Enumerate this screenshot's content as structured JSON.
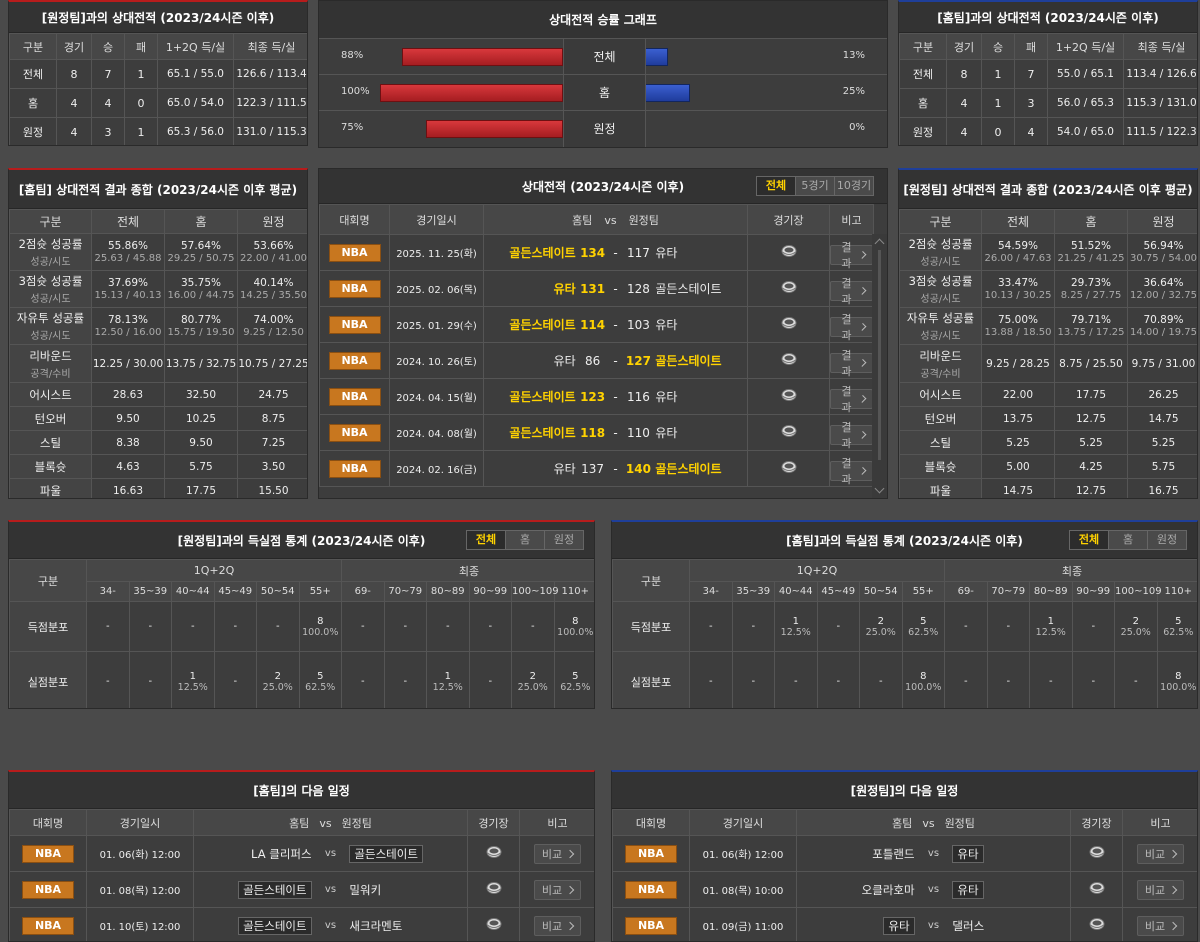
{
  "away_record": {
    "title": "[원정팀]과의 상대전적 (2023/24시즌 이후)",
    "columns": [
      "구분",
      "경기",
      "승",
      "패",
      "1+2Q 득/실",
      "최종 득/실"
    ],
    "rows": [
      [
        "전체",
        8,
        7,
        1,
        "65.1 / 55.0",
        "126.6 / 113.4"
      ],
      [
        "홈",
        4,
        4,
        0,
        "65.0 / 54.0",
        "122.3 / 111.5"
      ],
      [
        "원정",
        4,
        3,
        1,
        "65.3 / 56.0",
        "131.0 / 115.3"
      ]
    ]
  },
  "win_graph": {
    "title": "상대전적 승률 그래프",
    "xlim": [
      0,
      100
    ],
    "rows": [
      {
        "label": "전체",
        "home": 88,
        "home_label": "88%",
        "away": 13,
        "away_label": "13%"
      },
      {
        "label": "홈",
        "home": 100,
        "home_label": "100%",
        "away": 25,
        "away_label": "25%"
      },
      {
        "label": "원정",
        "home": 75,
        "home_label": "75%",
        "away": 0,
        "away_label": "0%"
      }
    ]
  },
  "home_record": {
    "title": "[홈팀]과의 상대전적 (2023/24시즌 이후)",
    "columns": [
      "구분",
      "경기",
      "승",
      "패",
      "1+2Q 득/실",
      "최종 득/실"
    ],
    "rows": [
      [
        "전체",
        8,
        1,
        7,
        "55.0 / 65.1",
        "113.4 / 126.6"
      ],
      [
        "홈",
        4,
        1,
        3,
        "56.0 / 65.3",
        "115.3 / 131.0"
      ],
      [
        "원정",
        4,
        0,
        4,
        "54.0 / 65.0",
        "111.5 / 122.3"
      ]
    ]
  },
  "home_summary": {
    "title": "[홈팀] 상대전적 결과 종합 (2023/24시즌 이후 평균)",
    "columns": [
      "구분",
      "전체",
      "홈",
      "원정"
    ],
    "rows": [
      {
        "label": "2점슛 성공률",
        "sub": "성공/시도",
        "cells": [
          [
            "55.86%",
            "25.63 / 45.88"
          ],
          [
            "57.64%",
            "29.25 / 50.75"
          ],
          [
            "53.66%",
            "22.00 / 41.00"
          ]
        ]
      },
      {
        "label": "3점슛 성공률",
        "sub": "성공/시도",
        "cells": [
          [
            "37.69%",
            "15.13 / 40.13"
          ],
          [
            "35.75%",
            "16.00 / 44.75"
          ],
          [
            "40.14%",
            "14.25 / 35.50"
          ]
        ]
      },
      {
        "label": "자유투 성공률",
        "sub": "성공/시도",
        "cells": [
          [
            "78.13%",
            "12.50 / 16.00"
          ],
          [
            "80.77%",
            "15.75 / 19.50"
          ],
          [
            "74.00%",
            "9.25 / 12.50"
          ]
        ]
      },
      {
        "label": "리바운드",
        "sub": "공격/수비",
        "cells": [
          [
            "12.25 / 30.00"
          ],
          [
            "13.75 / 32.75"
          ],
          [
            "10.75 / 27.25"
          ]
        ]
      },
      {
        "label": "어시스트",
        "cells": [
          [
            "28.63"
          ],
          [
            "32.50"
          ],
          [
            "24.75"
          ]
        ]
      },
      {
        "label": "턴오버",
        "cells": [
          [
            "9.50"
          ],
          [
            "10.25"
          ],
          [
            "8.75"
          ]
        ]
      },
      {
        "label": "스틸",
        "cells": [
          [
            "8.38"
          ],
          [
            "9.50"
          ],
          [
            "7.25"
          ]
        ]
      },
      {
        "label": "블록슛",
        "cells": [
          [
            "4.63"
          ],
          [
            "5.75"
          ],
          [
            "3.50"
          ]
        ]
      },
      {
        "label": "파울",
        "cells": [
          [
            "16.63"
          ],
          [
            "17.75"
          ],
          [
            "15.50"
          ]
        ]
      }
    ]
  },
  "away_summary": {
    "title": "[원정팀] 상대전적 결과 종합 (2023/24시즌 이후 평균)",
    "columns": [
      "구분",
      "전체",
      "홈",
      "원정"
    ],
    "rows": [
      {
        "label": "2점슛 성공률",
        "sub": "성공/시도",
        "cells": [
          [
            "54.59%",
            "26.00 / 47.63"
          ],
          [
            "51.52%",
            "21.25 / 41.25"
          ],
          [
            "56.94%",
            "30.75 / 54.00"
          ]
        ]
      },
      {
        "label": "3점슛 성공률",
        "sub": "성공/시도",
        "cells": [
          [
            "33.47%",
            "10.13 / 30.25"
          ],
          [
            "29.73%",
            "8.25 / 27.75"
          ],
          [
            "36.64%",
            "12.00 / 32.75"
          ]
        ]
      },
      {
        "label": "자유투 성공률",
        "sub": "성공/시도",
        "cells": [
          [
            "75.00%",
            "13.88 / 18.50"
          ],
          [
            "79.71%",
            "13.75 / 17.25"
          ],
          [
            "70.89%",
            "14.00 / 19.75"
          ]
        ]
      },
      {
        "label": "리바운드",
        "sub": "공격/수비",
        "cells": [
          [
            "9.25 / 28.25"
          ],
          [
            "8.75 / 25.50"
          ],
          [
            "9.75 / 31.00"
          ]
        ]
      },
      {
        "label": "어시스트",
        "cells": [
          [
            "22.00"
          ],
          [
            "17.75"
          ],
          [
            "26.25"
          ]
        ]
      },
      {
        "label": "턴오버",
        "cells": [
          [
            "13.75"
          ],
          [
            "12.75"
          ],
          [
            "14.75"
          ]
        ]
      },
      {
        "label": "스틸",
        "cells": [
          [
            "5.25"
          ],
          [
            "5.25"
          ],
          [
            "5.25"
          ]
        ]
      },
      {
        "label": "블록슛",
        "cells": [
          [
            "5.00"
          ],
          [
            "4.25"
          ],
          [
            "5.75"
          ]
        ]
      },
      {
        "label": "파울",
        "cells": [
          [
            "14.75"
          ],
          [
            "12.75"
          ],
          [
            "16.75"
          ]
        ]
      }
    ]
  },
  "matches": {
    "title": "상대전적 (2023/24시즌 이후)",
    "tabs": [
      "전체",
      "5경기",
      "10경기"
    ],
    "active_tab": 0,
    "columns": [
      "대회명",
      "경기일시",
      "홈팀",
      "vs",
      "원정팀",
      "경기장",
      "비고"
    ],
    "separator": "-",
    "button": "결과",
    "rows": [
      {
        "league": "NBA",
        "date": "2025. 11. 25(화)",
        "home": "골든스테이트",
        "home_score": 134,
        "away_score": 117,
        "away": "유타"
      },
      {
        "league": "NBA",
        "date": "2025. 02. 06(목)",
        "home": "유타",
        "home_score": 131,
        "away_score": 128,
        "away": "골든스테이트"
      },
      {
        "league": "NBA",
        "date": "2025. 01. 29(수)",
        "home": "골든스테이트",
        "home_score": 114,
        "away_score": 103,
        "away": "유타"
      },
      {
        "league": "NBA",
        "date": "2024. 10. 26(토)",
        "home": "유타",
        "home_score": 86,
        "away_score": 127,
        "away": "골든스테이트"
      },
      {
        "league": "NBA",
        "date": "2024. 04. 15(월)",
        "home": "골든스테이트",
        "home_score": 123,
        "away_score": 116,
        "away": "유타"
      },
      {
        "league": "NBA",
        "date": "2024. 04. 08(월)",
        "home": "골든스테이트",
        "home_score": 118,
        "away_score": 110,
        "away": "유타"
      },
      {
        "league": "NBA",
        "date": "2024. 02. 16(금)",
        "home": "유타",
        "home_score": 137,
        "away_score": 140,
        "away": "골든스테이트"
      }
    ]
  },
  "away_scores": {
    "title": "[원정팀]과의 득실점 통계 (2023/24시즌 이후)",
    "tabs": [
      "전체",
      "홈",
      "원정"
    ],
    "active_tab": 0,
    "label_header": "구분",
    "empty": "-",
    "groups": [
      {
        "name": "1Q+2Q",
        "bins": [
          "34-",
          "35~39",
          "40~44",
          "45~49",
          "50~54",
          "55+"
        ]
      },
      {
        "name": "최종",
        "bins": [
          "69-",
          "70~79",
          "80~89",
          "90~99",
          "100~109",
          "110+"
        ]
      }
    ],
    "rows": [
      {
        "label": "득점분포",
        "cells": [
          null,
          null,
          null,
          null,
          null,
          {
            "count": 8,
            "pct": "100.0%"
          },
          null,
          null,
          null,
          null,
          null,
          {
            "count": 8,
            "pct": "100.0%"
          }
        ]
      },
      {
        "label": "실점분포",
        "cells": [
          null,
          null,
          {
            "count": 1,
            "pct": "12.5%"
          },
          null,
          {
            "count": 2,
            "pct": "25.0%"
          },
          {
            "count": 5,
            "pct": "62.5%"
          },
          null,
          null,
          {
            "count": 1,
            "pct": "12.5%"
          },
          null,
          {
            "count": 2,
            "pct": "25.0%"
          },
          {
            "count": 5,
            "pct": "62.5%"
          }
        ]
      }
    ]
  },
  "home_scores": {
    "title": "[홈팀]과의 득실점 통계 (2023/24시즌 이후)",
    "tabs": [
      "전체",
      "홈",
      "원정"
    ],
    "active_tab": 0,
    "label_header": "구분",
    "empty": "-",
    "groups": [
      {
        "name": "1Q+2Q",
        "bins": [
          "34-",
          "35~39",
          "40~44",
          "45~49",
          "50~54",
          "55+"
        ]
      },
      {
        "name": "최종",
        "bins": [
          "69-",
          "70~79",
          "80~89",
          "90~99",
          "100~109",
          "110+"
        ]
      }
    ],
    "rows": [
      {
        "label": "득점분포",
        "cells": [
          null,
          null,
          {
            "count": 1,
            "pct": "12.5%"
          },
          null,
          {
            "count": 2,
            "pct": "25.0%"
          },
          {
            "count": 5,
            "pct": "62.5%"
          },
          null,
          null,
          {
            "count": 1,
            "pct": "12.5%"
          },
          null,
          {
            "count": 2,
            "pct": "25.0%"
          },
          {
            "count": 5,
            "pct": "62.5%"
          }
        ]
      },
      {
        "label": "실점분포",
        "cells": [
          null,
          null,
          null,
          null,
          null,
          {
            "count": 8,
            "pct": "100.0%"
          },
          null,
          null,
          null,
          null,
          null,
          {
            "count": 8,
            "pct": "100.0%"
          }
        ]
      }
    ]
  },
  "home_schedule": {
    "title": "[홈팀]의 다음 일정",
    "columns": [
      "대회명",
      "경기일시",
      "홈팀",
      "vs",
      "원정팀",
      "경기장",
      "비고"
    ],
    "vs": "vs",
    "button": "비교",
    "focus_team": "골든스테이트",
    "rows": [
      {
        "league": "NBA",
        "date": "01. 06(화) 12:00",
        "home": "LA 클리퍼스",
        "away": "골든스테이트"
      },
      {
        "league": "NBA",
        "date": "01. 08(목) 12:00",
        "home": "골든스테이트",
        "away": "밀워키"
      },
      {
        "league": "NBA",
        "date": "01. 10(토) 12:00",
        "home": "골든스테이트",
        "away": "새크라멘토"
      }
    ]
  },
  "away_schedule": {
    "title": "[원정팀]의 다음 일정",
    "columns": [
      "대회명",
      "경기일시",
      "홈팀",
      "vs",
      "원정팀",
      "경기장",
      "비고"
    ],
    "vs": "vs",
    "button": "비교",
    "focus_team": "유타",
    "rows": [
      {
        "league": "NBA",
        "date": "01. 06(화) 12:00",
        "home": "포틀랜드",
        "away": "유타"
      },
      {
        "league": "NBA",
        "date": "01. 08(목) 10:00",
        "home": "오클라호마",
        "away": "유타"
      },
      {
        "league": "NBA",
        "date": "01. 09(금) 11:00",
        "home": "유타",
        "away": "댈러스"
      }
    ]
  }
}
